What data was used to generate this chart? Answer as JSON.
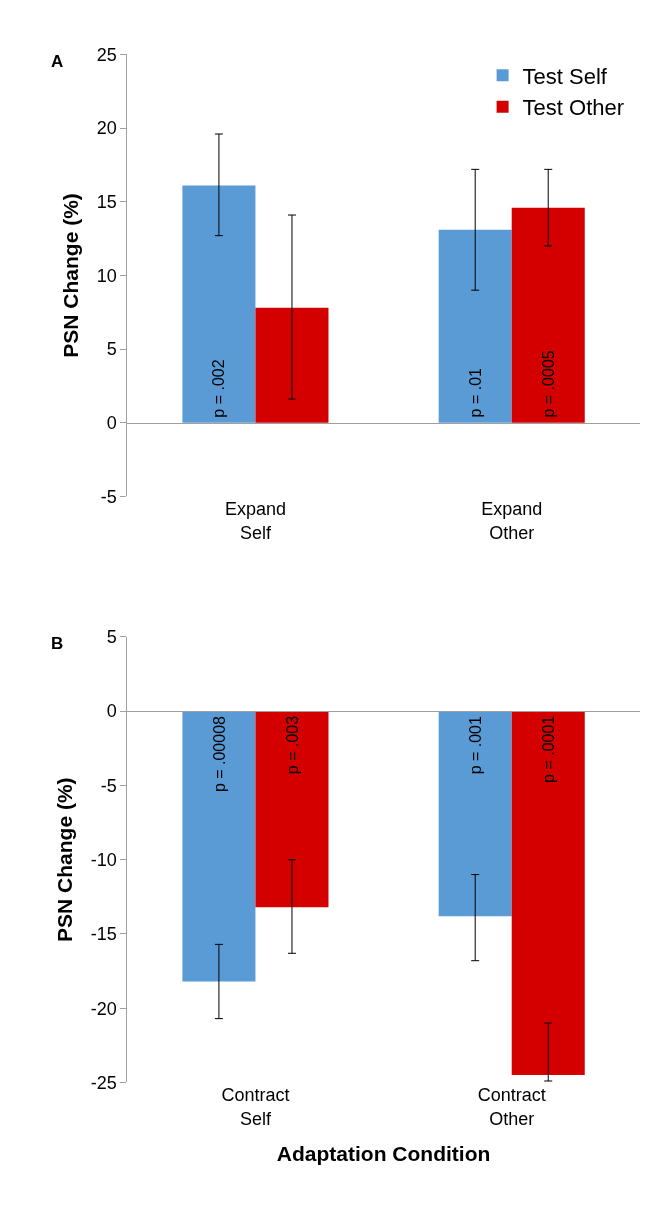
{
  "chart_data": [
    {
      "type": "bar",
      "title": "A",
      "ylabel": "PSN Change (%)",
      "categories": [
        "Expand\nSelf",
        "Expand\nOther"
      ],
      "ylim": [
        -5,
        25
      ],
      "yticks": [
        -5,
        0,
        5,
        10,
        15,
        20,
        25
      ],
      "legend": "top right",
      "series": [
        {
          "name": "Test Self",
          "color": "#5b9bd5",
          "values": [
            16.1,
            13.1
          ],
          "errors": [
            [
              12.7,
              19.6
            ],
            [
              9.0,
              17.2
            ]
          ]
        },
        {
          "name": "Test Other",
          "color": "#d40000",
          "values": [
            7.8,
            14.6
          ],
          "errors": [
            [
              1.6,
              14.1
            ],
            [
              12.0,
              17.2
            ]
          ]
        }
      ],
      "annotations": [
        {
          "text": "p = .002",
          "x": "Expand\nSelf",
          "y": 0
        },
        {
          "text": "p = .01",
          "x": "Expand\nOther",
          "y": 0
        },
        {
          "text": "p = .0005",
          "x": "Expand\nOther",
          "y": 0
        }
      ]
    },
    {
      "type": "bar",
      "title": "B",
      "ylabel": "PSN Change (%)",
      "xlabel": "Adaptation Condition",
      "categories": [
        "Contract\nSelf",
        "Contract\nOther"
      ],
      "ylim": [
        -25,
        5
      ],
      "yticks": [
        -25,
        -20,
        -15,
        -10,
        -5,
        0,
        5
      ],
      "legend": false,
      "series": [
        {
          "color": "#5b9bd5",
          "values": [
            -18.2,
            -13.8
          ],
          "errors": [
            [
              -20.7,
              -15.7
            ],
            [
              -16.8,
              -11.0
            ]
          ]
        },
        {
          "color": "#d40000",
          "values": [
            -13.2,
            -24.5
          ],
          "errors": [
            [
              -16.3,
              -10.0
            ],
            [
              -24.9,
              -21.0
            ]
          ]
        }
      ],
      "annotations": [
        {
          "text": "p = .00008",
          "x": "Contract\nSelf",
          "y": 0
        },
        {
          "text": "p = .003",
          "x": "Contract\nSelf",
          "y": 0
        },
        {
          "text": "p = .001",
          "x": "Contract\nOther",
          "y": 0
        },
        {
          "text": "p = .0001",
          "x": "Contract\nOther",
          "y": 0
        }
      ]
    }
  ]
}
